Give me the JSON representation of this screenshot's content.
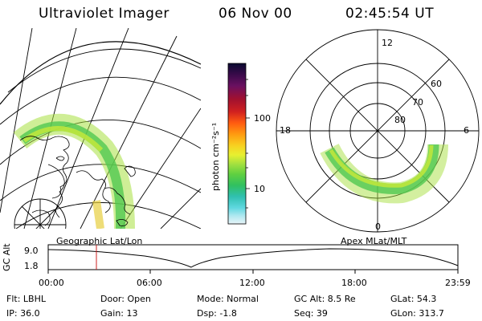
{
  "header": {
    "title": "Ultraviolet Imager",
    "date": "06 Nov 00",
    "time": "02:45:54 UT"
  },
  "geo_panel": {
    "label": "Geographic Lat/Lon"
  },
  "colorbar": {
    "unit_label": "photon cm⁻²s⁻¹",
    "tick_labels": [
      "100",
      "10"
    ],
    "colors": [
      "#0a0a30",
      "#3a0a4a",
      "#6a1060",
      "#a01030",
      "#d02020",
      "#ff5a10",
      "#ff9a10",
      "#f8d020",
      "#e8f030",
      "#a0e040",
      "#60d040",
      "#30c060",
      "#30c0b0",
      "#60d8e0",
      "#b0e8f0",
      "#e8f4f8"
    ]
  },
  "polar_panel": {
    "label": "Apex MLat/MLT",
    "mlt_labels": {
      "top": "12",
      "bottom": "0",
      "left": "18",
      "right": "6"
    },
    "mlat_labels": [
      "60",
      "70",
      "80"
    ]
  },
  "timeline": {
    "ylabel": "GC Alt",
    "ytick_top": "9.0",
    "ytick_bottom": "1.8",
    "xtick_labels": [
      "00:00",
      "06:00",
      "12:00",
      "18:00",
      "23:59"
    ],
    "marker_color": "#cc2020"
  },
  "info": {
    "flt": "Flt: LBHL",
    "ip": "IP: 36.0",
    "door": "Door: Open",
    "gain": "Gain: 13",
    "mode": "Mode: Normal",
    "dsp": "Dsp:    -1.8",
    "gcalt": "GC Alt: 8.5 Re",
    "seq": "Seq: 39",
    "glat": "GLat:  54.3",
    "glon": "GLon: 313.7"
  }
}
